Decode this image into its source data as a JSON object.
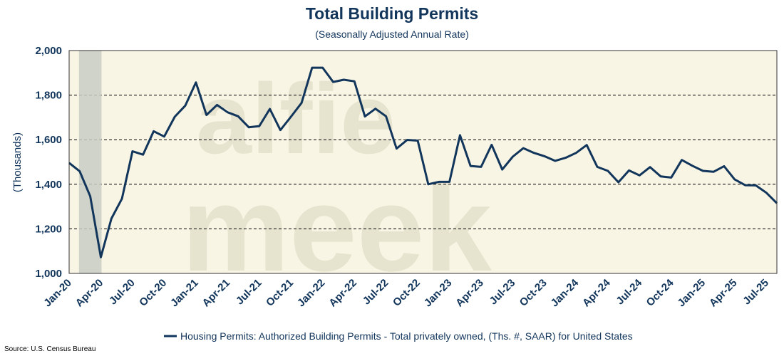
{
  "chart_data": {
    "type": "line",
    "title": "Total Building Permits",
    "subtitle": "(Seasonally Adjusted Annual Rate)",
    "ylabel": "(Thousands)",
    "ylim": [
      1000,
      2000
    ],
    "y_ticks": [
      "1,000",
      "1,200",
      "1,400",
      "1,600",
      "1,800",
      "2,000"
    ],
    "y_tick_values": [
      1000,
      1200,
      1400,
      1600,
      1800,
      2000
    ],
    "x_tick_labels": [
      "Jan-20",
      "Apr-20",
      "Jul-20",
      "Oct-20",
      "Jan-21",
      "Apr-21",
      "Jul-21",
      "Oct-21",
      "Jan-22",
      "Apr-22",
      "Jul-22",
      "Oct-22",
      "Jan-23",
      "Apr-23",
      "Jul-23",
      "Oct-23",
      "Jan-24",
      "Apr-24",
      "Jul-24",
      "Oct-24",
      "Jan-25",
      "Apr-25",
      "Jul-25"
    ],
    "x_start": "Jan-20",
    "x_end": "Sep-25",
    "gridlines": "horizontal dashed",
    "recession_shading": {
      "from": "Feb-20",
      "to": "Apr-20",
      "color": "#c9cdc6"
    },
    "plot_background": "#f8f5e4",
    "line_color": "#12355b",
    "series": [
      {
        "name": "Housing Permits: Authorized Building Permits - Total privately owned, (Ths. #, SAAR) for United States",
        "values": [
          1496,
          1458,
          1346,
          1073,
          1246,
          1335,
          1548,
          1533,
          1638,
          1614,
          1703,
          1753,
          1857,
          1711,
          1756,
          1723,
          1705,
          1656,
          1661,
          1738,
          1643,
          1703,
          1765,
          1923,
          1923,
          1859,
          1869,
          1862,
          1704,
          1739,
          1705,
          1560,
          1599,
          1596,
          1400,
          1411,
          1411,
          1620,
          1482,
          1478,
          1577,
          1466,
          1524,
          1562,
          1541,
          1526,
          1505,
          1519,
          1541,
          1576,
          1478,
          1460,
          1409,
          1462,
          1440,
          1477,
          1435,
          1430,
          1509,
          1483,
          1460,
          1456,
          1481,
          1422,
          1396,
          1395,
          1362,
          1315
        ]
      }
    ],
    "legend": "bottom-center",
    "source": "Source: U.S. Census Bureau",
    "watermark": "alfie meek"
  }
}
